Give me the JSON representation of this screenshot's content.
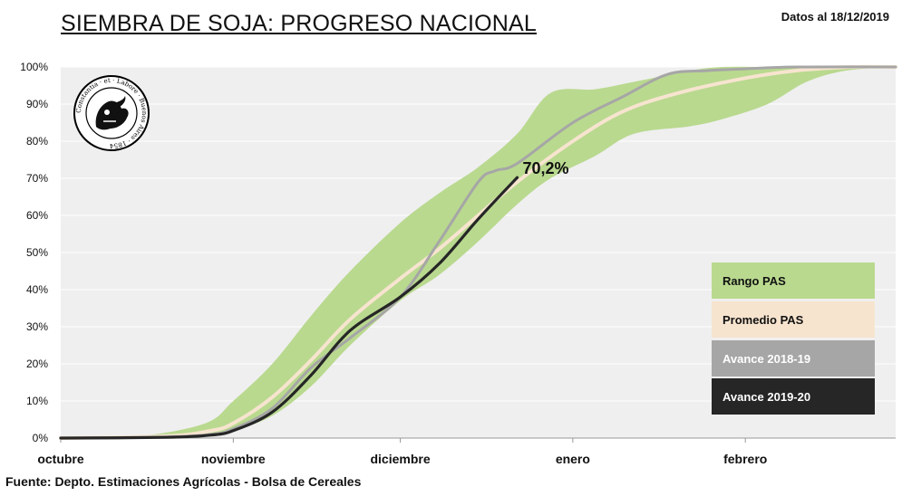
{
  "header": {
    "title": "SIEMBRA DE SOJA: PROGRESO NACIONAL",
    "date": "Datos al 18/12/2019"
  },
  "footer": {
    "source": "Fuente: Depto. Estimaciones Agrícolas - Bolsa de Cereales"
  },
  "logo": {
    "text": "Constantia · et · Labore · Buenos Aires · 1854"
  },
  "colors": {
    "range": "#b9d98f",
    "average": "#f7e4cf",
    "prev": "#a6a6a6",
    "current": "#262626",
    "plot_bg": "#efefef",
    "grid": "#ffffff"
  },
  "chart_data": {
    "type": "line",
    "title": "SIEMBRA DE SOJA: PROGRESO NACIONAL",
    "xlabel": "",
    "ylabel": "",
    "ylim": [
      0,
      100
    ],
    "xlim": [
      "01/10",
      "28/02"
    ],
    "x_ticks": [
      {
        "label": "octubre",
        "date": "01/10"
      },
      {
        "label": "noviembre",
        "date": "01/11"
      },
      {
        "label": "diciembre",
        "date": "01/12"
      },
      {
        "label": "enero",
        "date": "01/01"
      },
      {
        "label": "febrero",
        "date": "01/02"
      }
    ],
    "y_ticks": [
      "0%",
      "10%",
      "20%",
      "30%",
      "40%",
      "50%",
      "60%",
      "70%",
      "80%",
      "90%",
      "100%"
    ],
    "grid": true,
    "legend_position": "right",
    "band": {
      "name": "Rango PAS",
      "x": [
        "01/10",
        "15/10",
        "27/10",
        "01/11",
        "08/11",
        "15/11",
        "22/11",
        "01/12",
        "08/12",
        "15/12",
        "22/12",
        "28/12",
        "05/01",
        "12/01",
        "22/01",
        "28/01",
        "05/02",
        "12/02",
        "19/02",
        "28/02"
      ],
      "upper": [
        0,
        0.5,
        4,
        10,
        20,
        33,
        45,
        58,
        66,
        73,
        82,
        93,
        94,
        96,
        99,
        100,
        100,
        100,
        100,
        100
      ],
      "lower": [
        0,
        0,
        0.5,
        2,
        6,
        14,
        25,
        37,
        44,
        53,
        63,
        70,
        76,
        82,
        84,
        86,
        90,
        96,
        99,
        100
      ]
    },
    "series": [
      {
        "name": "Promedio PAS",
        "x": [
          "01/10",
          "20/10",
          "28/10",
          "01/11",
          "08/11",
          "15/11",
          "22/11",
          "01/12",
          "08/12",
          "15/12",
          "22/12",
          "01/01",
          "10/01",
          "20/01",
          "01/02",
          "10/02",
          "20/02",
          "28/02"
        ],
        "values": [
          0,
          0.5,
          2,
          4,
          11,
          21,
          32,
          43,
          51,
          60,
          69,
          80,
          88,
          93,
          97,
          99,
          100,
          100
        ]
      },
      {
        "name": "Avance 2018-19",
        "x": [
          "01/10",
          "20/10",
          "28/10",
          "01/11",
          "08/11",
          "15/11",
          "22/11",
          "01/12",
          "08/12",
          "15/12",
          "18/12",
          "22/12",
          "01/01",
          "10/01",
          "18/01",
          "25/01",
          "01/02",
          "10/02",
          "28/02"
        ],
        "values": [
          0,
          0.3,
          1,
          2.5,
          8,
          19,
          27,
          38,
          53,
          69,
          72,
          74,
          85,
          92,
          98,
          99,
          99.5,
          100,
          100
        ]
      },
      {
        "name": "Avance 2019-20",
        "x": [
          "01/10",
          "20/10",
          "28/10",
          "01/11",
          "08/11",
          "15/11",
          "22/11",
          "01/12",
          "08/12",
          "15/12",
          "22/12"
        ],
        "values": [
          0,
          0.2,
          0.8,
          2,
          7,
          17,
          29,
          38,
          47,
          59,
          70.2
        ]
      }
    ],
    "annotation": {
      "text": "70,2%",
      "date": "22/12",
      "value": 70.2
    },
    "legend": [
      {
        "name": "Rango PAS"
      },
      {
        "name": "Promedio PAS"
      },
      {
        "name": "Avance 2018-19"
      },
      {
        "name": "Avance 2019-20"
      }
    ]
  }
}
